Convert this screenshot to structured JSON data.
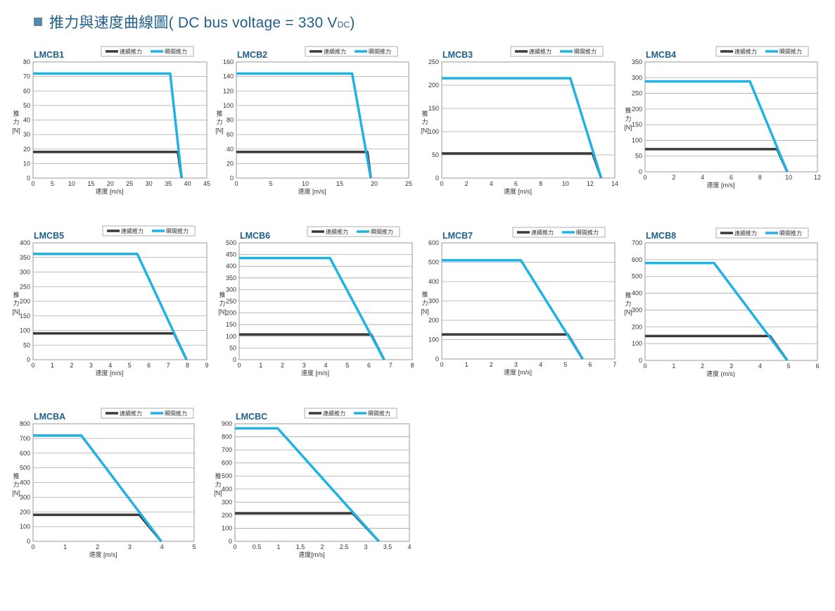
{
  "page": {
    "heading_main": "推力與速度曲線圖( DC bus voltage = 330 V",
    "heading_sub": "DC",
    "heading_end": ")",
    "colors": {
      "continuous": "#3a3a3a",
      "peak": "#1fb3e5",
      "title": "#1f5f8b"
    }
  },
  "chart_data": [
    {
      "type": "line",
      "title": "LMCB1",
      "xlabel": "速度 [m/s]",
      "ylabel": "推力 [N]",
      "xlim": [
        0,
        45
      ],
      "xticks": [
        0,
        5,
        10,
        15,
        20,
        25,
        30,
        35,
        40,
        45
      ],
      "ylim": [
        0,
        80
      ],
      "yticks": [
        0,
        10,
        20,
        30,
        40,
        50,
        60,
        70,
        80
      ],
      "legend": {
        "continuous": "連續推力",
        "peak": "瞬間推力"
      },
      "series": [
        {
          "name": "連續推力",
          "x": [
            0,
            37.5,
            38.5
          ],
          "y": [
            18,
            18,
            0
          ]
        },
        {
          "name": "瞬間推力",
          "x": [
            0,
            35.5,
            38.5
          ],
          "y": [
            72,
            72,
            0
          ]
        }
      ]
    },
    {
      "type": "line",
      "title": "LMCB2",
      "xlabel": "速度 [m/s]",
      "ylabel": "推力 [N]",
      "xlim": [
        0,
        25
      ],
      "xticks": [
        0,
        5,
        10,
        15,
        20,
        25
      ],
      "ylim": [
        0,
        160
      ],
      "yticks": [
        0,
        20,
        40,
        60,
        80,
        100,
        120,
        140,
        160
      ],
      "legend": {
        "continuous": "連續推力",
        "peak": "瞬間推力"
      },
      "series": [
        {
          "name": "連續推力",
          "x": [
            0,
            19.0,
            19.5
          ],
          "y": [
            36,
            36,
            0
          ]
        },
        {
          "name": "瞬間推力",
          "x": [
            0,
            16.8,
            19.5
          ],
          "y": [
            144,
            144,
            0
          ]
        }
      ]
    },
    {
      "type": "line",
      "title": "LMCB3",
      "xlabel": "速度 [m/s]",
      "ylabel": "推力 [N]",
      "xlim": [
        0,
        14
      ],
      "xticks": [
        0,
        2,
        4,
        6,
        8,
        10,
        12,
        14
      ],
      "ylim": [
        0,
        250
      ],
      "yticks": [
        0,
        50,
        100,
        150,
        200,
        250
      ],
      "legend": {
        "continuous": "連續推力",
        "peak": "瞬間推力"
      },
      "series": [
        {
          "name": "連續推力",
          "x": [
            0,
            12.2,
            12.9
          ],
          "y": [
            53,
            53,
            0
          ]
        },
        {
          "name": "瞬間推力",
          "x": [
            0,
            10.4,
            12.9
          ],
          "y": [
            215,
            215,
            0
          ]
        }
      ]
    },
    {
      "type": "line",
      "title": "LMCB4",
      "xlabel": "速度 [m/s]",
      "ylabel": "推力 [N]",
      "xlim": [
        0,
        12
      ],
      "xticks": [
        0,
        2,
        4,
        6,
        8,
        10,
        12
      ],
      "ylim": [
        0,
        350
      ],
      "yticks": [
        0,
        50,
        100,
        150,
        200,
        250,
        300,
        350
      ],
      "legend": {
        "continuous": "連續推力",
        "peak": "瞬間推力"
      },
      "series": [
        {
          "name": "連續推力",
          "x": [
            0,
            9.2,
            9.9
          ],
          "y": [
            72,
            72,
            0
          ]
        },
        {
          "name": "瞬間推力",
          "x": [
            0,
            7.3,
            9.9
          ],
          "y": [
            288,
            288,
            0
          ]
        }
      ]
    },
    {
      "type": "line",
      "title": "LMCB5",
      "xlabel": "速度 [m/s]",
      "ylabel": "推力 [N]",
      "xlim": [
        0,
        9
      ],
      "xticks": [
        0,
        1,
        2,
        3,
        4,
        5,
        6,
        7,
        8,
        9
      ],
      "ylim": [
        0,
        400
      ],
      "yticks": [
        0,
        50,
        100,
        150,
        200,
        250,
        300,
        350,
        400
      ],
      "legend": {
        "continuous": "連續推力",
        "peak": "瞬間推力"
      },
      "series": [
        {
          "name": "連續推力",
          "x": [
            0,
            7.3,
            7.95
          ],
          "y": [
            90,
            90,
            0
          ]
        },
        {
          "name": "瞬間推力",
          "x": [
            0,
            5.4,
            7.95
          ],
          "y": [
            362,
            362,
            0
          ]
        }
      ]
    },
    {
      "type": "line",
      "title": "LMCB6",
      "xlabel": "速度 [m/s]",
      "ylabel": "推力 [N]",
      "xlim": [
        0,
        8
      ],
      "xticks": [
        0,
        1,
        2,
        3,
        4,
        5,
        6,
        7,
        8
      ],
      "ylim": [
        0,
        500
      ],
      "yticks": [
        0,
        50,
        100,
        150,
        200,
        250,
        300,
        350,
        400,
        450,
        500
      ],
      "legend": {
        "continuous": "連續推力",
        "peak": "瞬間推力"
      },
      "series": [
        {
          "name": "連續推力",
          "x": [
            0,
            6.1,
            6.7
          ],
          "y": [
            108,
            108,
            0
          ]
        },
        {
          "name": "瞬間推力",
          "x": [
            0,
            4.2,
            6.7
          ],
          "y": [
            435,
            435,
            0
          ]
        }
      ]
    },
    {
      "type": "line",
      "title": "LMCB7",
      "xlabel": "速度 [m/s]",
      "ylabel": "推力 [N]",
      "xlim": [
        0,
        7
      ],
      "xticks": [
        0,
        1,
        2,
        3,
        4,
        5,
        6,
        7
      ],
      "ylim": [
        0,
        600
      ],
      "yticks": [
        0,
        100,
        200,
        300,
        400,
        500,
        600
      ],
      "legend": {
        "continuous": "連續推力",
        "peak": "瞬間推力"
      },
      "series": [
        {
          "name": "連續推力",
          "x": [
            0,
            5.1,
            5.7
          ],
          "y": [
            127,
            127,
            0
          ]
        },
        {
          "name": "瞬間推力",
          "x": [
            0,
            3.2,
            5.7
          ],
          "y": [
            510,
            510,
            0
          ]
        }
      ]
    },
    {
      "type": "line",
      "title": "LMCB8",
      "xlabel": "速度 (m/s)",
      "ylabel": "推力 [N]",
      "xlim": [
        0,
        6
      ],
      "xticks": [
        0,
        1,
        2,
        3,
        4,
        5,
        6
      ],
      "ylim": [
        0,
        700
      ],
      "yticks": [
        0,
        100,
        200,
        300,
        400,
        500,
        600,
        700
      ],
      "legend": {
        "continuous": "連續推力",
        "peak": "瞬間推力"
      },
      "series": [
        {
          "name": "連續推力",
          "x": [
            0,
            4.35,
            4.95
          ],
          "y": [
            145,
            145,
            0
          ]
        },
        {
          "name": "瞬間推力",
          "x": [
            0,
            2.4,
            4.95
          ],
          "y": [
            580,
            580,
            0
          ]
        }
      ]
    },
    {
      "type": "line",
      "title": "LMCBA",
      "xlabel": "速度 [m/s]",
      "ylabel": "推力 [N]",
      "xlim": [
        0,
        5
      ],
      "xticks": [
        0,
        1,
        2,
        3,
        4,
        5
      ],
      "ylim": [
        0,
        800
      ],
      "yticks": [
        0,
        100,
        200,
        300,
        400,
        500,
        600,
        700,
        800
      ],
      "legend": {
        "continuous": "連續推力",
        "peak": "瞬間推力"
      },
      "series": [
        {
          "name": "連續推力",
          "x": [
            0,
            3.3,
            3.98
          ],
          "y": [
            180,
            180,
            0
          ]
        },
        {
          "name": "瞬間推力",
          "x": [
            0,
            1.5,
            3.98
          ],
          "y": [
            720,
            720,
            0
          ]
        }
      ]
    },
    {
      "type": "line",
      "title": "LMCBC",
      "xlabel": "速度[m/s]",
      "ylabel": "推力 [N]",
      "xlim": [
        0,
        4
      ],
      "xticks": [
        0,
        0.5,
        1,
        1.5,
        2,
        2.5,
        3,
        3.5,
        4
      ],
      "ylim": [
        0,
        900
      ],
      "yticks": [
        0,
        100,
        200,
        300,
        400,
        500,
        600,
        700,
        800,
        900
      ],
      "legend": {
        "continuous": "連續推力",
        "peak": "瞬間推力"
      },
      "series": [
        {
          "name": "連續推力",
          "x": [
            0,
            2.7,
            3.3
          ],
          "y": [
            215,
            215,
            0
          ]
        },
        {
          "name": "瞬間推力",
          "x": [
            0,
            0.98,
            3.3
          ],
          "y": [
            865,
            865,
            0
          ]
        }
      ]
    }
  ]
}
